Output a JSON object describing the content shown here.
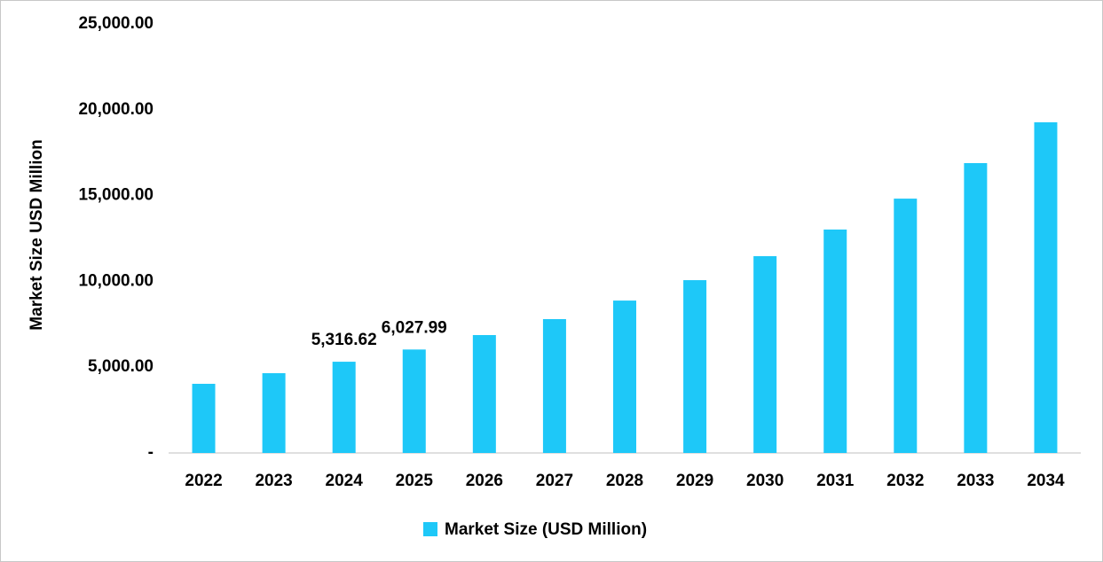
{
  "chart_data": {
    "type": "bar",
    "y_label": "Market Size USD Million",
    "categories": [
      "2022",
      "2023",
      "2024",
      "2025",
      "2026",
      "2027",
      "2028",
      "2029",
      "2030",
      "2031",
      "2032",
      "2033",
      "2034"
    ],
    "series": [
      {
        "name": "Market Size (USD Million)",
        "color": "#1ec8f8",
        "values": [
          4030,
          4650,
          5316.62,
          6027.99,
          6870,
          7800,
          8880,
          10070,
          11470,
          13020,
          14820,
          16890,
          19270
        ],
        "value_labels": [
          null,
          null,
          "5,316.62",
          "6,027.99",
          null,
          null,
          null,
          null,
          null,
          null,
          null,
          null,
          null
        ]
      }
    ],
    "ylim": [
      0,
      25000
    ],
    "yticks": [
      {
        "value": 0,
        "label": "-"
      },
      {
        "value": 5000,
        "label": "5,000.00"
      },
      {
        "value": 10000,
        "label": "10,000.00"
      },
      {
        "value": 15000,
        "label": "15,000.00"
      },
      {
        "value": 20000,
        "label": "20,000.00"
      },
      {
        "value": 25000,
        "label": "25,000.00"
      }
    ],
    "grid": false,
    "legend": "bottom"
  }
}
